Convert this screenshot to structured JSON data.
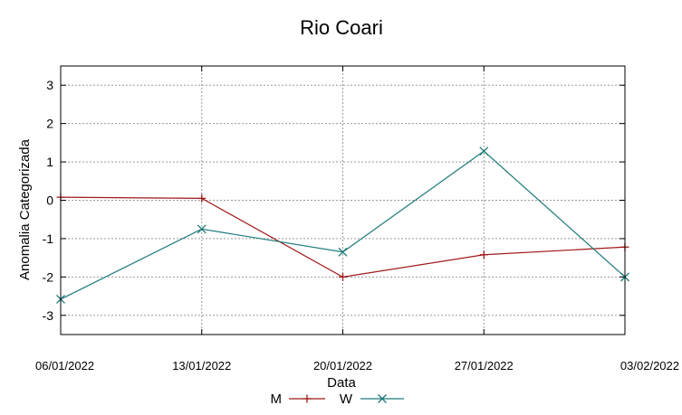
{
  "chart_data": {
    "type": "line",
    "title": "Rio Coari",
    "xlabel": "Data",
    "ylabel": "Anomalia Categorizada",
    "x": [
      "06/01/2022",
      "13/01/2022",
      "20/01/2022",
      "27/01/2022",
      "03/02/2022"
    ],
    "ylim": [
      -3.5,
      3.5
    ],
    "yticks": [
      3,
      2,
      1,
      0,
      -1,
      -2,
      -3
    ],
    "grid": true,
    "legend_position": "bottom-center",
    "series": [
      {
        "name": "M",
        "values": [
          0.08,
          0.05,
          -2.0,
          -1.42,
          -1.22
        ],
        "color": "#a01818",
        "marker": "plus"
      },
      {
        "name": "W",
        "values": [
          -2.58,
          -0.75,
          -1.35,
          1.28,
          -2.0
        ],
        "color": "#1e7a7a",
        "marker": "cross"
      }
    ]
  }
}
